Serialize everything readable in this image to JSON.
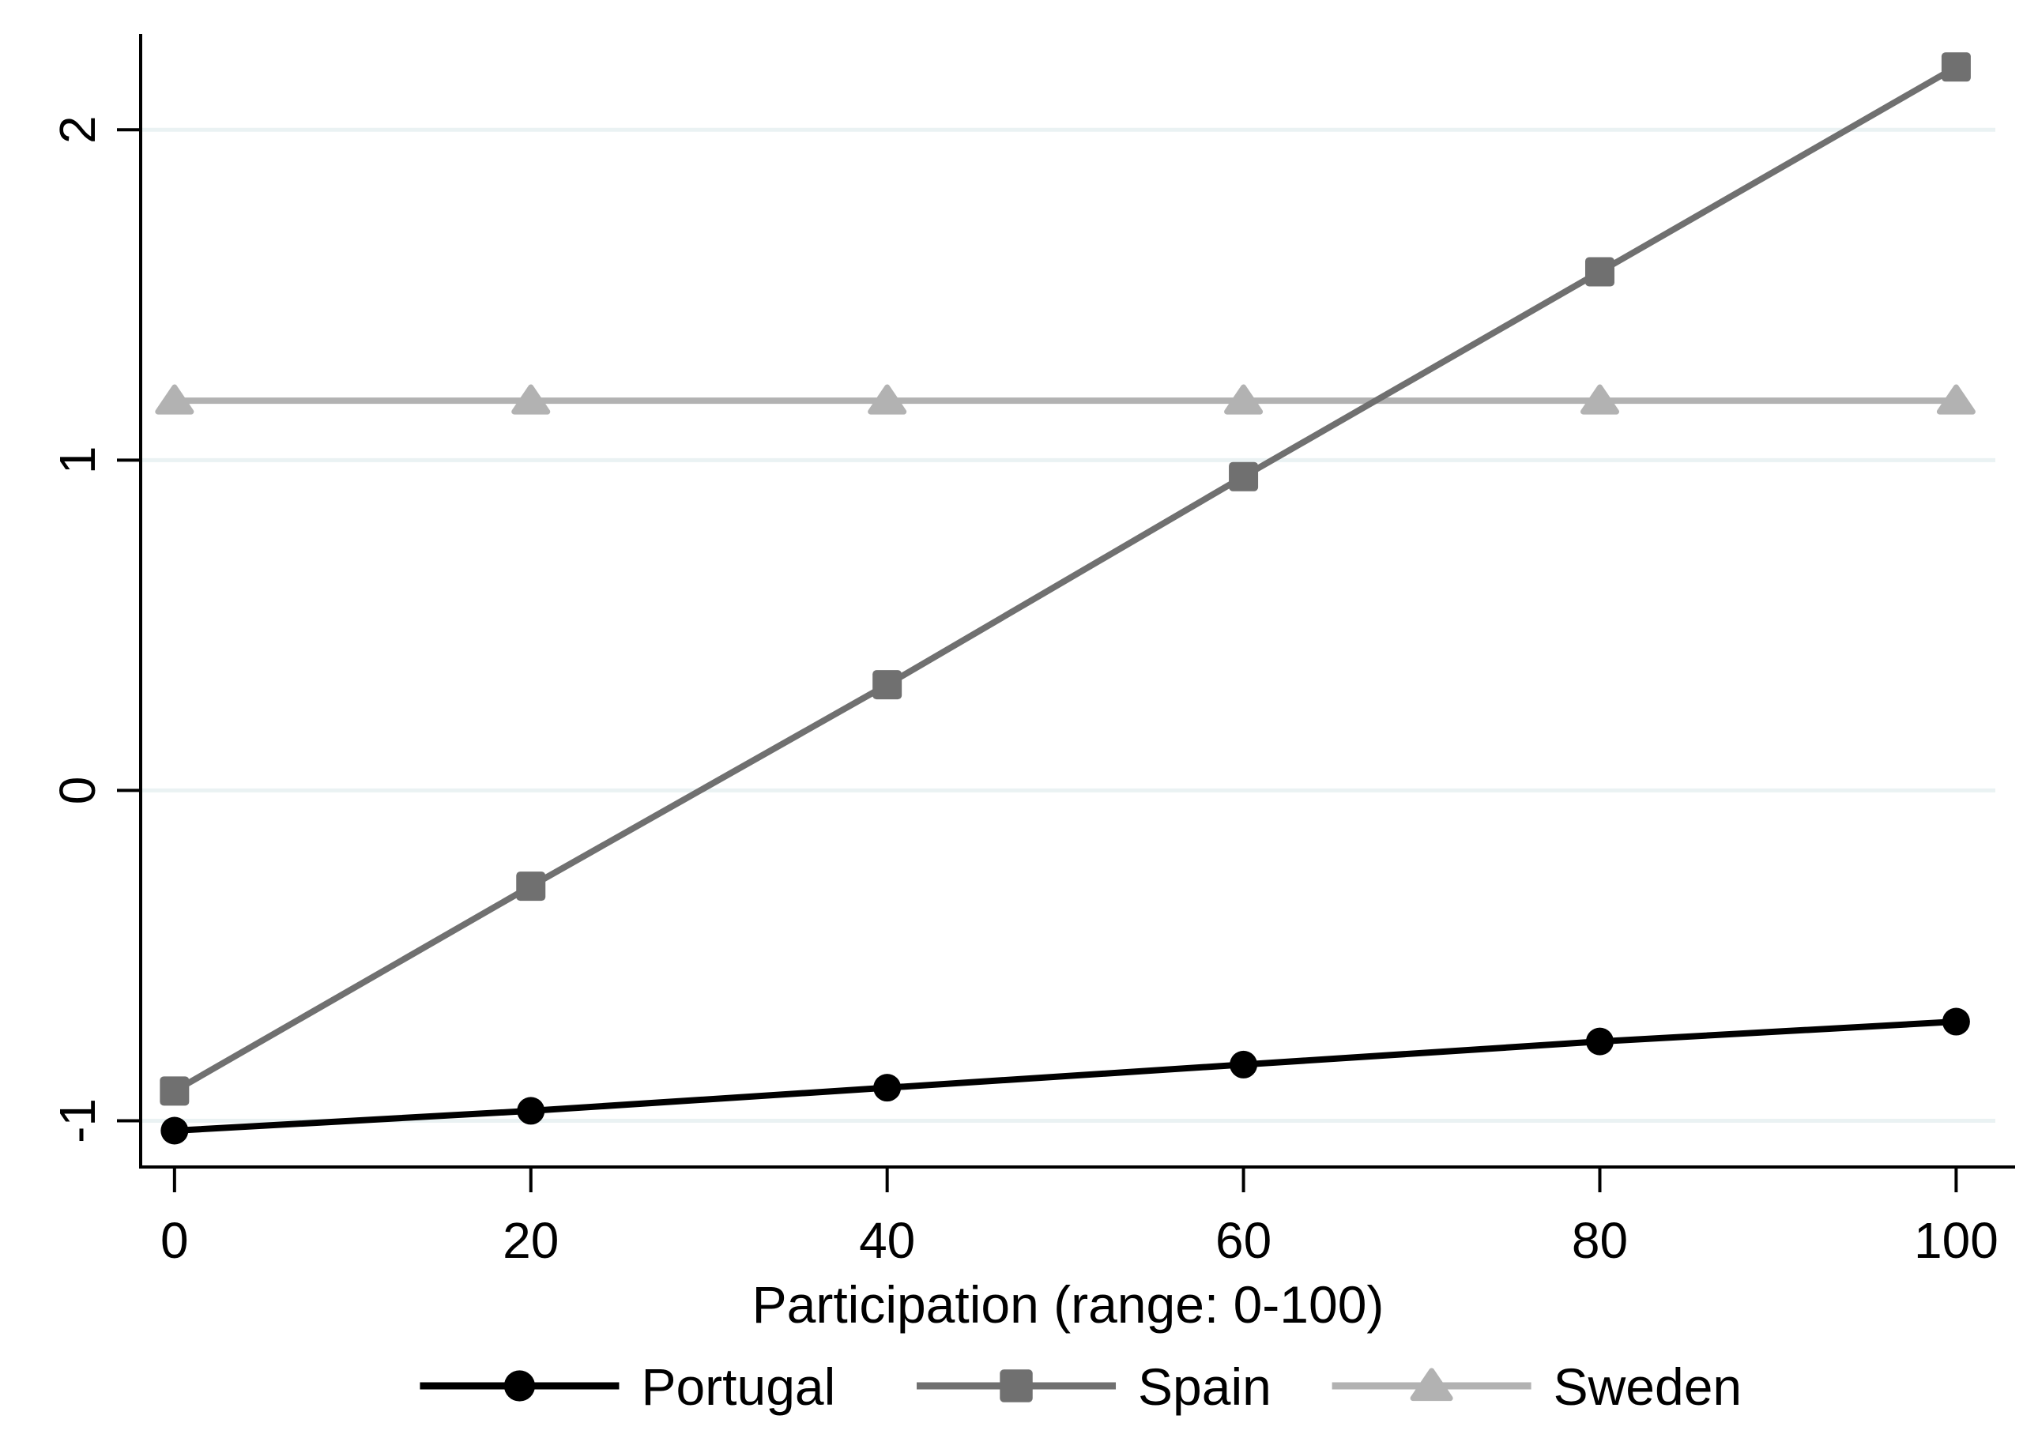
{
  "chart_data": {
    "type": "line",
    "x": [
      0,
      20,
      40,
      60,
      80,
      100
    ],
    "series": [
      {
        "name": "Portugal",
        "values": [
          -1.03,
          -0.97,
          -0.9,
          -0.83,
          -0.76,
          -0.7
        ],
        "color": "#000000",
        "marker": "circle"
      },
      {
        "name": "Spain",
        "values": [
          -0.91,
          -0.29,
          0.32,
          0.95,
          1.57,
          2.19
        ],
        "color": "#707070",
        "marker": "square"
      },
      {
        "name": "Sweden",
        "values": [
          1.18,
          1.18,
          1.18,
          1.18,
          1.18,
          1.18
        ],
        "color": "#b2b2b2",
        "marker": "triangle"
      }
    ],
    "title": "",
    "xlabel": "Participation (range: 0-100)",
    "ylabel": "",
    "xticks": [
      0,
      20,
      40,
      60,
      80,
      100
    ],
    "xtick_labels": [
      "0",
      "20",
      "40",
      "60",
      "80",
      "100"
    ],
    "yticks": [
      -1,
      0,
      1,
      2
    ],
    "ytick_labels": [
      "-1",
      "0",
      "1",
      "2"
    ],
    "xlim": [
      -1.9,
      102.2
    ],
    "ylim": [
      -1.14,
      2.29
    ],
    "grid": "horizontal-only",
    "legend_position": "bottom",
    "legend_entries": [
      "Portugal",
      "Spain",
      "Sweden"
    ],
    "colors": {
      "background": "#ffffff",
      "axis": "#000000",
      "gridline": "#eaf2f3",
      "portugal": "#000000",
      "spain": "#707070",
      "sweden": "#b2b2b2"
    }
  }
}
